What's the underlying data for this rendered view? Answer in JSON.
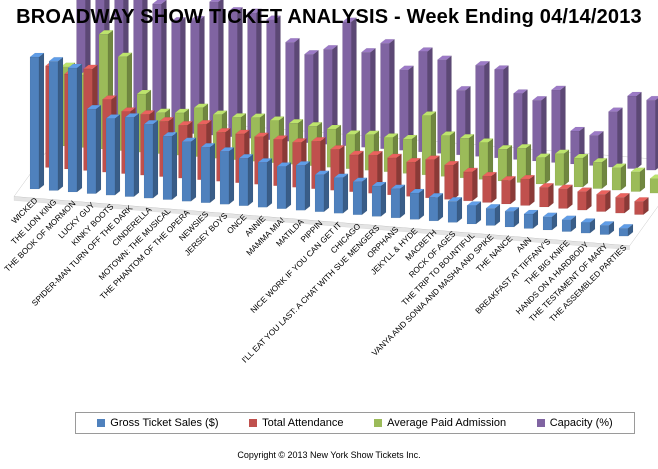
{
  "chart_data": {
    "type": "bar",
    "title": "BROADWAY SHOW TICKET ANALYSIS - Week Ending 04/14/2013",
    "xlabel": "",
    "ylabel": "",
    "ylim": [
      0,
      100
    ],
    "grid": false,
    "legend_position": "bottom",
    "categories": [
      "WICKED",
      "THE LION KING",
      "THE BOOK OF MORMON",
      "LUCKY GUY",
      "KINKY BOOTS",
      "SPIDER-MAN TURN OFF THE DARK",
      "CINDERELLA",
      "MOTOWN: THE MUSICAL",
      "THE PHANTOM OF THE OPERA",
      "NEWSIES",
      "JERSEY BOYS",
      "ONCE",
      "ANNIE",
      "MAMMA MIA!",
      "MATILDA",
      "PIPPIN",
      "NICE WORK IF YOU CAN GET IT",
      "CHICAGO",
      "I'LL EAT YOU LAST: A CHAT WITH SUE MENGERS",
      "ORPHANS",
      "JEKYLL & HYDE",
      "MACBETH",
      "ROCK OF AGES",
      "THE TRIP TO BOUNTIFUL",
      "VANYA AND SONIA AND MASHA AND SPIKE",
      "THE NANCE",
      "ANN",
      "BREAKFAST AT TIFFANY'S",
      "THE BIG KNIFE",
      "HANDS ON A HARDBODY",
      "THE TESTAMENT OF MARY",
      "THE ASSEMBLED PARTIES"
    ],
    "series": [
      {
        "name": "Gross Ticket Sales ($)",
        "color": "#4f81bd",
        "values": [
          100,
          98,
          94,
          64,
          58,
          60,
          56,
          48,
          45,
          42,
          40,
          36,
          34,
          32,
          34,
          28,
          27,
          25,
          23,
          22,
          20,
          18,
          16,
          14,
          13,
          12,
          11,
          10,
          9,
          8,
          7,
          6
        ]
      },
      {
        "name": "Total Attendance",
        "color": "#c0504d",
        "values": [
          77,
          72,
          77,
          55,
          47,
          46,
          42,
          40,
          42,
          37,
          37,
          36,
          35,
          34,
          36,
          31,
          28,
          29,
          28,
          26,
          29,
          26,
          22,
          20,
          18,
          20,
          15,
          15,
          14,
          13,
          12,
          10
        ]
      },
      {
        "name": "Average Paid Admission",
        "color": "#9bbb59",
        "values": [
          60,
          55,
          87,
          71,
          44,
          31,
          32,
          37,
          33,
          32,
          33,
          32,
          31,
          30,
          29,
          26,
          27,
          26,
          26,
          45,
          31,
          30,
          28,
          24,
          26,
          20,
          24,
          22,
          20,
          17,
          15,
          11
        ]
      },
      {
        "name": "Capacity (%)",
        "color": "#8064a2",
        "values": [
          100,
          100,
          100,
          99,
          96,
          84,
          86,
          101,
          95,
          95,
          91,
          75,
          67,
          72,
          94,
          72,
          80,
          61,
          76,
          71,
          49,
          69,
          67,
          50,
          46,
          55,
          25,
          23,
          42,
          55,
          53,
          47
        ]
      }
    ]
  },
  "legend": {
    "items": [
      {
        "label": "Gross Ticket Sales ($)",
        "color": "#4f81bd"
      },
      {
        "label": "Total Attendance",
        "color": "#c0504d"
      },
      {
        "label": "Average Paid Admission",
        "color": "#9bbb59"
      },
      {
        "label": "Capacity (%)",
        "color": "#8064a2"
      }
    ]
  },
  "footer": {
    "copyright": "Copyright © 2013 New York Show Tickets Inc."
  }
}
